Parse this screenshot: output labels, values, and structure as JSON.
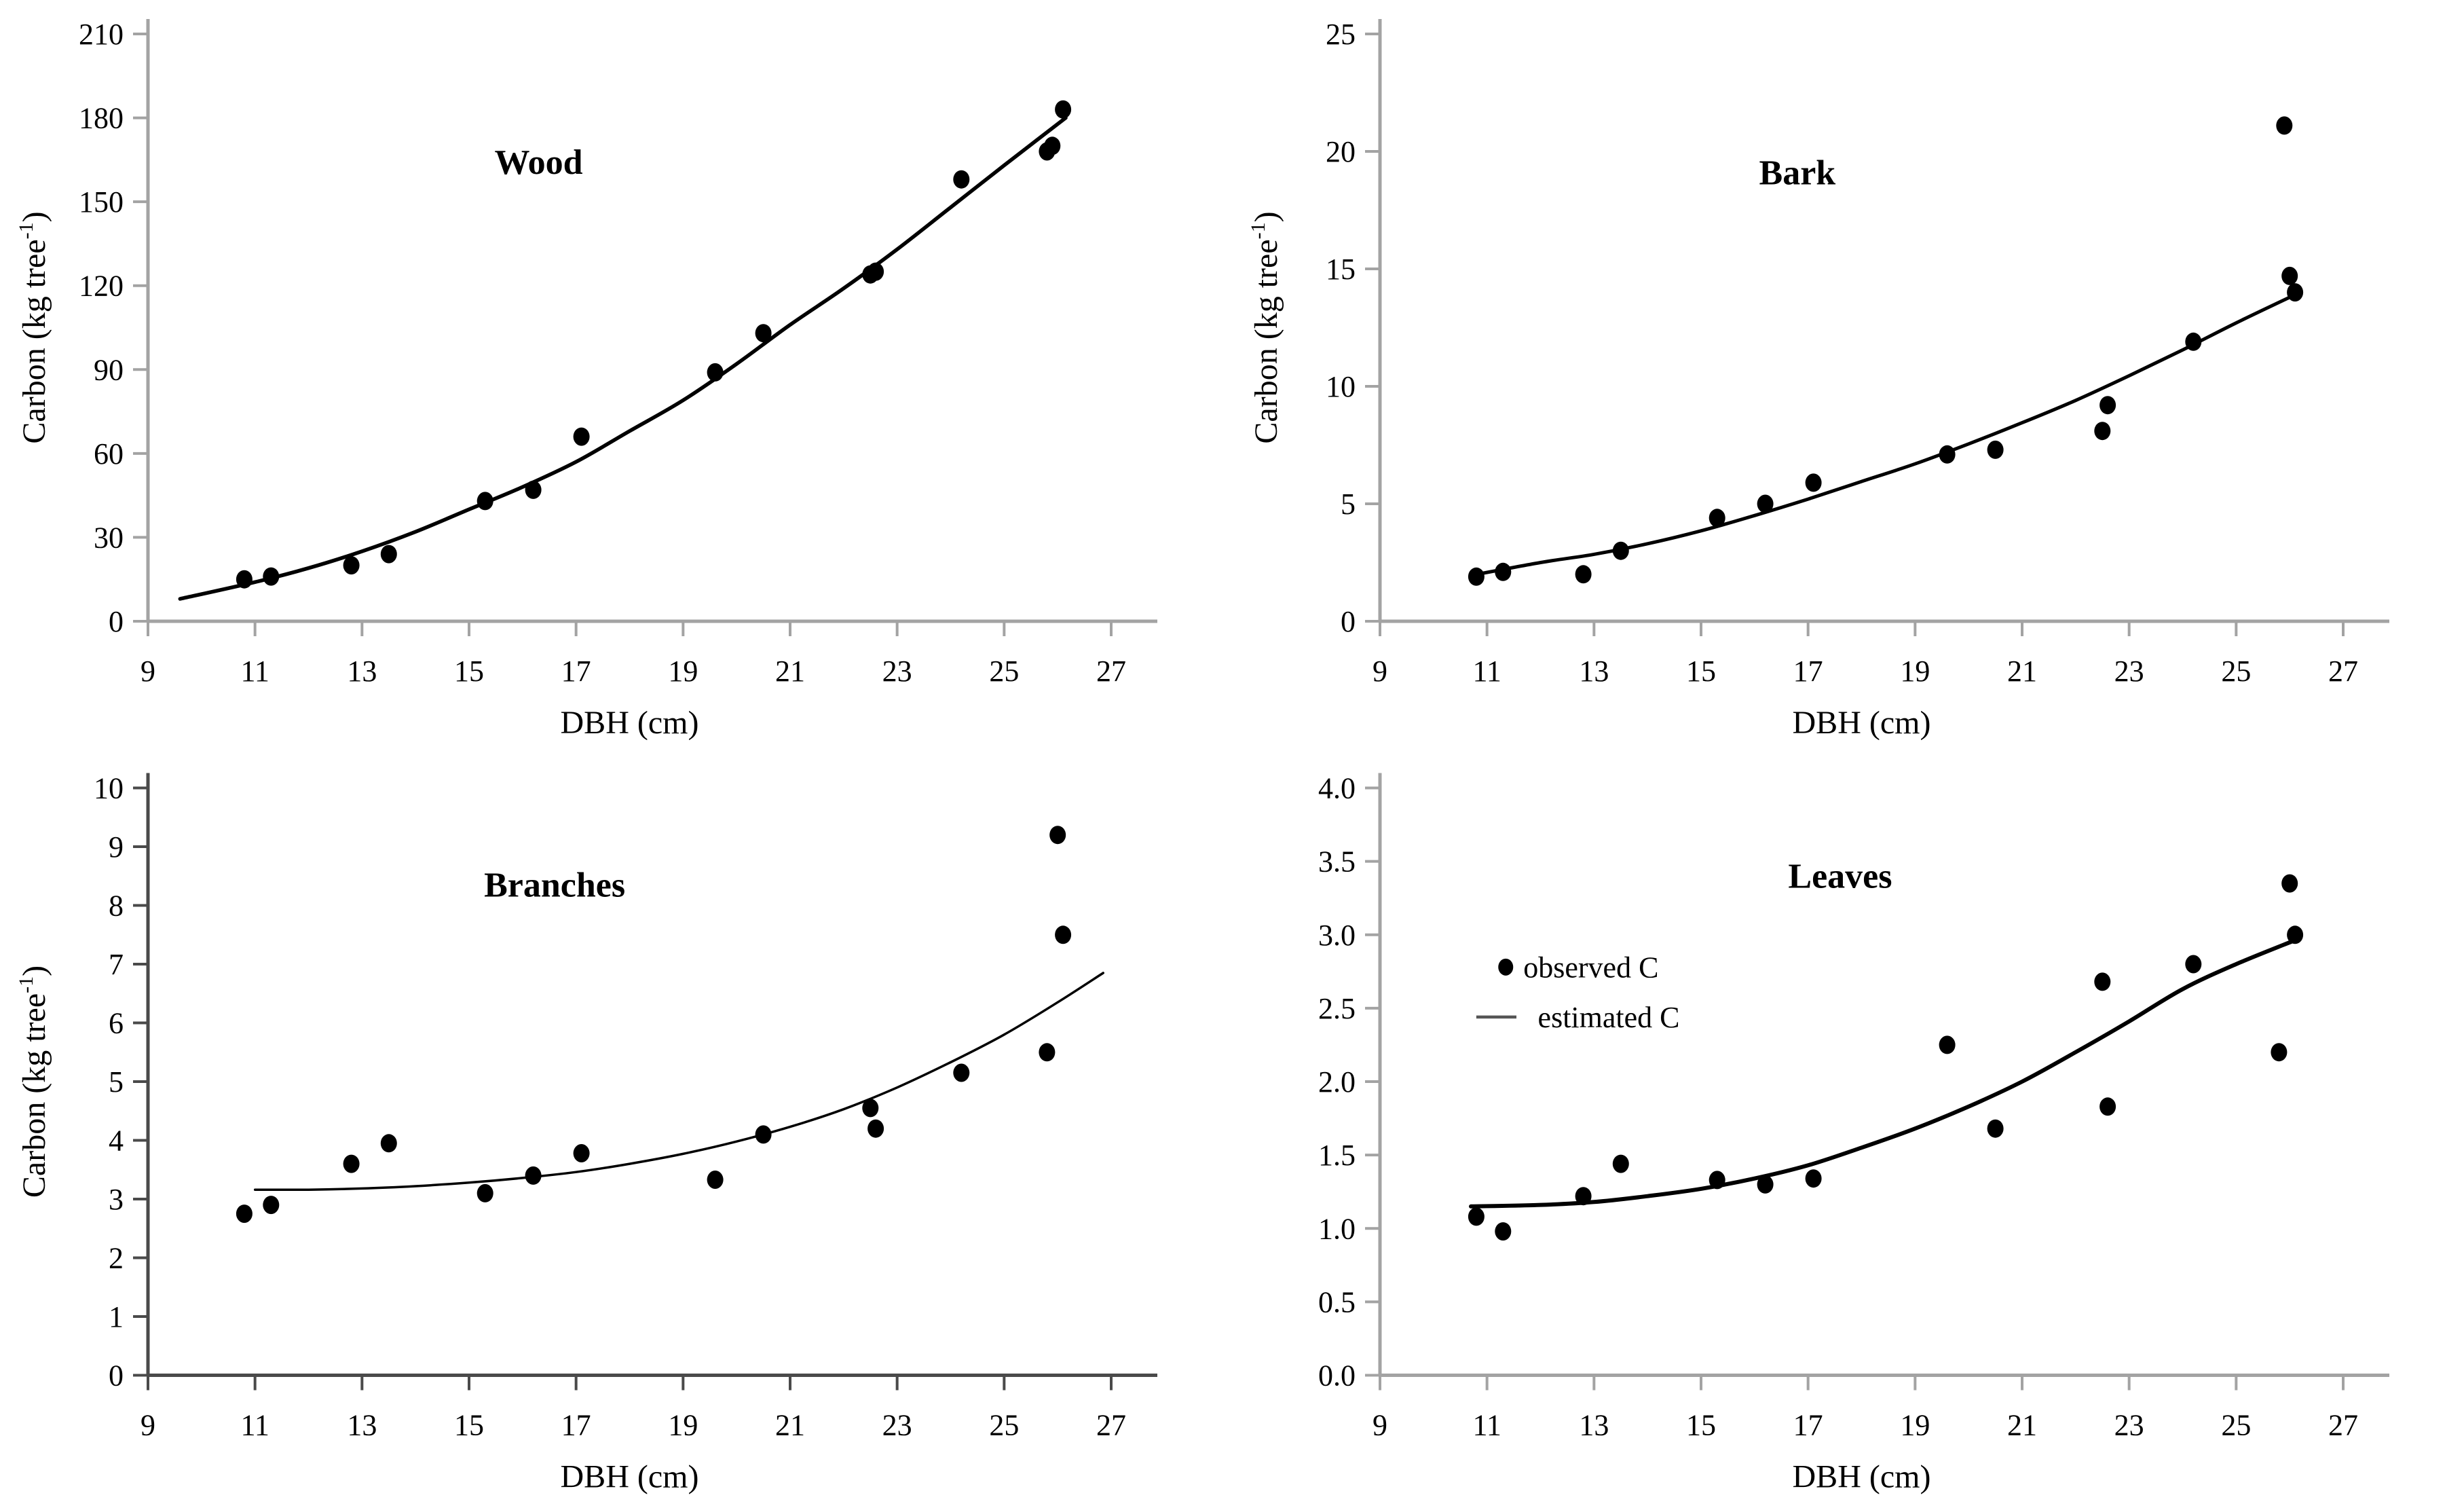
{
  "page": {
    "background": "#ffffff"
  },
  "colors": {
    "axis_light": "#a3a3a3",
    "axis_dark": "#4a4a4a",
    "ink": "#000000",
    "legend_line": "#555555"
  },
  "chart_data": [
    {
      "id": "wood",
      "type": "scatter",
      "title": "Wood",
      "title_pos": [
        16.3,
        160
      ],
      "xlabel": "DBH (cm)",
      "ylabel_parts": [
        "Carbon (kg tree",
        "-1",
        ")"
      ],
      "xlim": [
        9,
        27
      ],
      "xtick_step": 2,
      "ylim": [
        0,
        210
      ],
      "ytick_step": 30,
      "ytick_decimals": 0,
      "axis_color": "#a3a3a3",
      "curve_width": 5.5,
      "points": [
        [
          10.8,
          15
        ],
        [
          11.3,
          16
        ],
        [
          12.8,
          20
        ],
        [
          13.5,
          24
        ],
        [
          15.3,
          43
        ],
        [
          16.2,
          47
        ],
        [
          17.1,
          66
        ],
        [
          19.6,
          89
        ],
        [
          20.5,
          103
        ],
        [
          22.5,
          124
        ],
        [
          22.6,
          125
        ],
        [
          24.2,
          158
        ],
        [
          25.8,
          168
        ],
        [
          25.9,
          170
        ],
        [
          26.1,
          183
        ]
      ],
      "curve": [
        [
          9.6,
          8
        ],
        [
          11,
          14
        ],
        [
          12,
          19
        ],
        [
          13,
          25
        ],
        [
          14,
          32
        ],
        [
          15,
          40
        ],
        [
          16,
          48
        ],
        [
          17,
          57
        ],
        [
          18,
          68
        ],
        [
          19,
          79
        ],
        [
          20,
          92
        ],
        [
          21,
          106
        ],
        [
          22,
          119
        ],
        [
          23,
          133
        ],
        [
          24,
          148
        ],
        [
          25,
          163
        ],
        [
          26.15,
          180
        ]
      ],
      "legend": null
    },
    {
      "id": "bark",
      "type": "scatter",
      "title": "Bark",
      "title_pos": [
        16.8,
        18.6
      ],
      "xlabel": "DBH (cm)",
      "ylabel_parts": [
        "Carbon (kg tree",
        "-1",
        ")"
      ],
      "xlim": [
        9,
        27
      ],
      "xtick_step": 2,
      "ylim": [
        0,
        25
      ],
      "ytick_step": 5,
      "ytick_decimals": 0,
      "axis_color": "#a3a3a3",
      "curve_width": 5,
      "points": [
        [
          10.8,
          1.9
        ],
        [
          11.3,
          2.1
        ],
        [
          12.8,
          2.0
        ],
        [
          13.5,
          3.0
        ],
        [
          15.3,
          4.4
        ],
        [
          16.2,
          5.0
        ],
        [
          17.1,
          5.9
        ],
        [
          19.6,
          7.1
        ],
        [
          20.5,
          7.3
        ],
        [
          22.5,
          8.1
        ],
        [
          22.6,
          9.2
        ],
        [
          24.2,
          11.9
        ],
        [
          25.9,
          21.1
        ],
        [
          26.0,
          14.7
        ],
        [
          26.1,
          14.0
        ]
      ],
      "curve": [
        [
          10.7,
          1.95
        ],
        [
          12,
          2.5
        ],
        [
          13,
          2.85
        ],
        [
          14,
          3.3
        ],
        [
          15,
          3.85
        ],
        [
          16,
          4.5
        ],
        [
          17,
          5.2
        ],
        [
          18,
          5.95
        ],
        [
          19,
          6.7
        ],
        [
          20,
          7.55
        ],
        [
          21,
          8.45
        ],
        [
          22,
          9.4
        ],
        [
          23,
          10.45
        ],
        [
          24,
          11.55
        ],
        [
          25,
          12.7
        ],
        [
          26.1,
          13.9
        ]
      ],
      "legend": null
    },
    {
      "id": "branches",
      "type": "scatter",
      "title": "Branches",
      "title_pos": [
        16.6,
        8.15
      ],
      "xlabel": "DBH (cm)",
      "ylabel_parts": [
        "Carbon (kg tree",
        "-1",
        ")"
      ],
      "xlim": [
        9,
        27
      ],
      "xtick_step": 2,
      "ylim": [
        0,
        10
      ],
      "ytick_step": 1,
      "ytick_decimals": 0,
      "axis_color": "#4a4a4a",
      "curve_width": 3.5,
      "points": [
        [
          10.8,
          2.75
        ],
        [
          11.3,
          2.9
        ],
        [
          12.8,
          3.6
        ],
        [
          13.5,
          3.95
        ],
        [
          15.3,
          3.1
        ],
        [
          16.2,
          3.4
        ],
        [
          17.1,
          3.78
        ],
        [
          19.6,
          3.33
        ],
        [
          20.5,
          4.1
        ],
        [
          22.5,
          4.55
        ],
        [
          22.6,
          4.2
        ],
        [
          24.2,
          5.15
        ],
        [
          25.8,
          5.5
        ],
        [
          26.0,
          9.2
        ],
        [
          26.1,
          7.5
        ]
      ],
      "curve": [
        [
          11.0,
          3.16
        ],
        [
          12,
          3.16
        ],
        [
          13,
          3.18
        ],
        [
          14,
          3.22
        ],
        [
          15,
          3.28
        ],
        [
          16,
          3.36
        ],
        [
          17,
          3.46
        ],
        [
          18,
          3.6
        ],
        [
          19,
          3.77
        ],
        [
          20,
          3.98
        ],
        [
          21,
          4.23
        ],
        [
          22,
          4.53
        ],
        [
          23,
          4.9
        ],
        [
          24,
          5.33
        ],
        [
          25,
          5.8
        ],
        [
          26,
          6.35
        ],
        [
          26.85,
          6.85
        ]
      ],
      "legend": null
    },
    {
      "id": "leaves",
      "type": "scatter",
      "title": "Leaves",
      "title_pos": [
        17.6,
        3.32
      ],
      "xlabel": "DBH (cm)",
      "ylabel_parts": null,
      "xlim": [
        9,
        27
      ],
      "xtick_step": 2,
      "ylim": [
        0,
        4
      ],
      "ytick_step": 0.5,
      "ytick_decimals": 1,
      "axis_color": "#a3a3a3",
      "curve_width": 6,
      "points": [
        [
          10.8,
          1.08
        ],
        [
          11.3,
          0.98
        ],
        [
          12.8,
          1.22
        ],
        [
          13.5,
          1.44
        ],
        [
          15.3,
          1.33
        ],
        [
          16.2,
          1.3
        ],
        [
          17.1,
          1.34
        ],
        [
          19.6,
          2.25
        ],
        [
          20.5,
          1.68
        ],
        [
          22.5,
          2.68
        ],
        [
          22.6,
          1.83
        ],
        [
          24.2,
          2.8
        ],
        [
          25.8,
          2.2
        ],
        [
          26.0,
          3.35
        ],
        [
          26.1,
          3.0
        ]
      ],
      "curve": [
        [
          10.7,
          1.15
        ],
        [
          12,
          1.16
        ],
        [
          13,
          1.18
        ],
        [
          14,
          1.22
        ],
        [
          15,
          1.27
        ],
        [
          16,
          1.34
        ],
        [
          17,
          1.43
        ],
        [
          18,
          1.55
        ],
        [
          19,
          1.68
        ],
        [
          20,
          1.83
        ],
        [
          21,
          2.0
        ],
        [
          22,
          2.2
        ],
        [
          23,
          2.41
        ],
        [
          24,
          2.63
        ],
        [
          25,
          2.8
        ],
        [
          26.15,
          2.97
        ]
      ],
      "legend": {
        "items": [
          {
            "marker": "dot",
            "label": "observed C",
            "x": 11.35,
            "y": 2.78
          },
          {
            "marker": "line",
            "label": "estimated C",
            "x1": 10.8,
            "x2": 11.55,
            "y": 2.44,
            "label_x": 11.95
          }
        ]
      }
    }
  ]
}
